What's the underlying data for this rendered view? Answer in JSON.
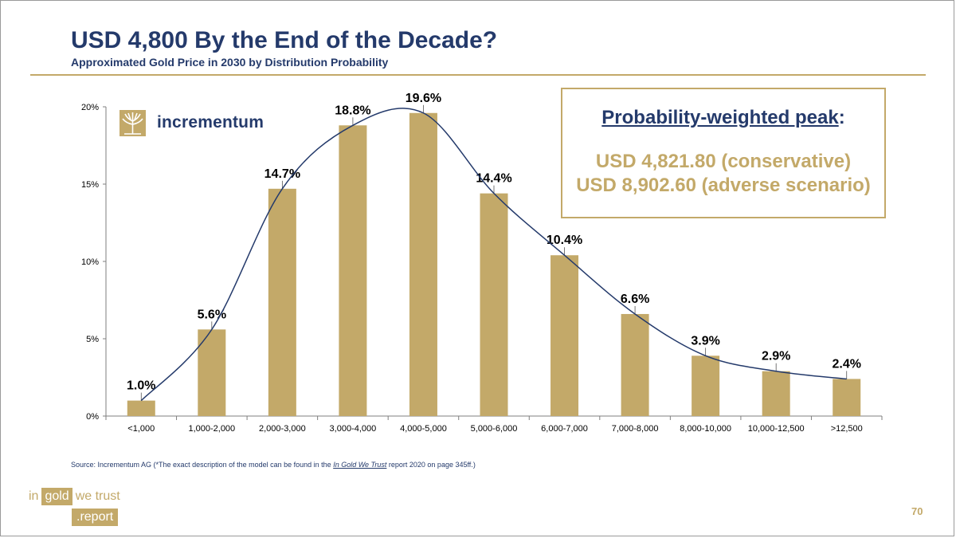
{
  "slide": {
    "title": "USD 4,800 By the End of the Decade?",
    "subtitle": "Approximated Gold Price in 2030 by Distribution Probability",
    "page_number": "70"
  },
  "logo": {
    "text": "incrementum",
    "icon": "tree-logo-icon"
  },
  "callout": {
    "heading": "Probability-weighted peak",
    "heading_suffix": ":",
    "line1": "USD 4,821.80 (conservative)",
    "line2": "USD 8,902.60 (adverse scenario)"
  },
  "source": {
    "prefix": "Source: Incrementum AG (*The exact description of the model can be found in the ",
    "italic": "In Gold We Trust",
    "suffix": " report 2020 on page 345ff.)"
  },
  "footer_logo": {
    "word1": "in",
    "word2": "gold",
    "word3": "we trust",
    "word4": ".report"
  },
  "colors": {
    "bar": "#c3a969",
    "navy": "#243a6b",
    "gold": "#c3a969"
  },
  "chart_data": {
    "type": "bar",
    "categories": [
      "<1,000",
      "1,000-2,000",
      "2,000-3,000",
      "3,000-4,000",
      "4,000-5,000",
      "5,000-6,000",
      "6,000-7,000",
      "7,000-8,000",
      "8,000-10,000",
      "10,000-12,500",
      ">12,500"
    ],
    "values": [
      1.0,
      5.6,
      14.7,
      18.8,
      19.6,
      14.4,
      10.4,
      6.6,
      3.9,
      2.9,
      2.4
    ],
    "value_labels": [
      "1.0%",
      "5.6%",
      "14.7%",
      "18.8%",
      "19.6%",
      "14.4%",
      "10.4%",
      "6.6%",
      "3.9%",
      "2.9%",
      "2.4%"
    ],
    "ylim": [
      0,
      20
    ],
    "yticks": [
      0,
      5,
      10,
      15,
      20
    ],
    "ytick_labels": [
      "0%",
      "5%",
      "10%",
      "15%",
      "20%"
    ],
    "overlay_curve": "smoothed line through bar tops",
    "grid": false
  }
}
